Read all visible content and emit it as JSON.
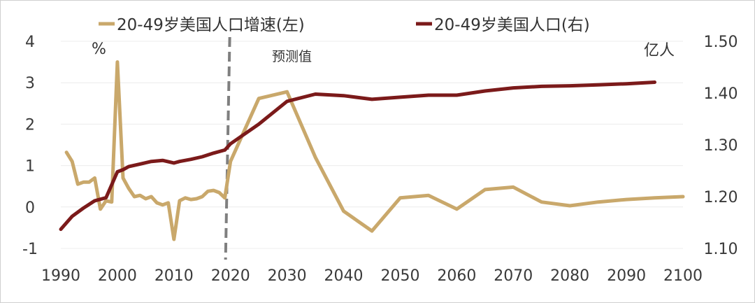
{
  "chart_data": {
    "type": "line",
    "title": "",
    "legend": {
      "placement": "top",
      "entries": [
        "20-49岁美国人口增速(左)",
        "20-49岁美国人口(右)"
      ]
    },
    "left_axis": {
      "unit": "%",
      "ylim": [
        -1,
        4
      ],
      "ticks": [
        -1,
        0,
        1,
        2,
        3,
        4
      ]
    },
    "right_axis": {
      "unit": "亿人",
      "ylim": [
        1.1,
        1.5
      ],
      "ticks": [
        "1.10",
        "1.20",
        "1.30",
        "1.40",
        "1.50"
      ]
    },
    "x_axis": {
      "xlim": [
        1990,
        2100
      ],
      "ticks": [
        1990,
        2000,
        2010,
        2020,
        2030,
        2040,
        2050,
        2060,
        2070,
        2080,
        2090,
        2100
      ]
    },
    "forecast_line": {
      "x": 2019,
      "label": "预测值"
    },
    "grid": {
      "horizontal": true,
      "vertical": false
    },
    "colors": {
      "growth": "#C9A86B",
      "population": "#7B1A1A",
      "dashed": "#7f7f7f"
    },
    "series": [
      {
        "name": "20-49岁美国人口增速(左)",
        "axis": "left",
        "x": [
          1991,
          1992,
          1993,
          1994,
          1995,
          1996,
          1997,
          1998,
          1999,
          2000,
          2001,
          2002,
          2003,
          2004,
          2005,
          2006,
          2007,
          2008,
          2009,
          2010,
          2011,
          2012,
          2013,
          2014,
          2015,
          2016,
          2017,
          2018,
          2019,
          2020,
          2025,
          2030,
          2035,
          2040,
          2045,
          2050,
          2055,
          2060,
          2065,
          2070,
          2075,
          2080,
          2085,
          2090,
          2095,
          2100
        ],
        "values": [
          1.32,
          1.1,
          0.55,
          0.6,
          0.6,
          0.7,
          -0.05,
          0.15,
          0.12,
          3.5,
          0.7,
          0.45,
          0.25,
          0.28,
          0.2,
          0.25,
          0.1,
          0.05,
          0.1,
          -0.78,
          0.15,
          0.22,
          0.18,
          0.2,
          0.25,
          0.38,
          0.4,
          0.35,
          0.22,
          1.1,
          2.62,
          2.78,
          1.2,
          -0.1,
          -0.58,
          0.22,
          0.28,
          -0.05,
          0.42,
          0.48,
          0.12,
          0.03,
          0.12,
          0.18,
          0.22,
          0.25
        ]
      },
      {
        "name": "20-49岁美国人口(右)",
        "axis": "right",
        "x": [
          1990,
          1992,
          1994,
          1996,
          1998,
          2000,
          2001,
          2002,
          2004,
          2006,
          2008,
          2010,
          2011,
          2013,
          2015,
          2017,
          2019,
          2020,
          2025,
          2030,
          2035,
          2040,
          2045,
          2050,
          2055,
          2060,
          2065,
          2070,
          2075,
          2080,
          2085,
          2090,
          2095
        ],
        "values": [
          1.137,
          1.162,
          1.178,
          1.192,
          1.198,
          1.248,
          1.252,
          1.258,
          1.263,
          1.268,
          1.27,
          1.265,
          1.268,
          1.272,
          1.277,
          1.284,
          1.29,
          1.302,
          1.34,
          1.384,
          1.398,
          1.395,
          1.388,
          1.392,
          1.396,
          1.396,
          1.404,
          1.41,
          1.413,
          1.414,
          1.416,
          1.418,
          1.421
        ]
      }
    ]
  }
}
